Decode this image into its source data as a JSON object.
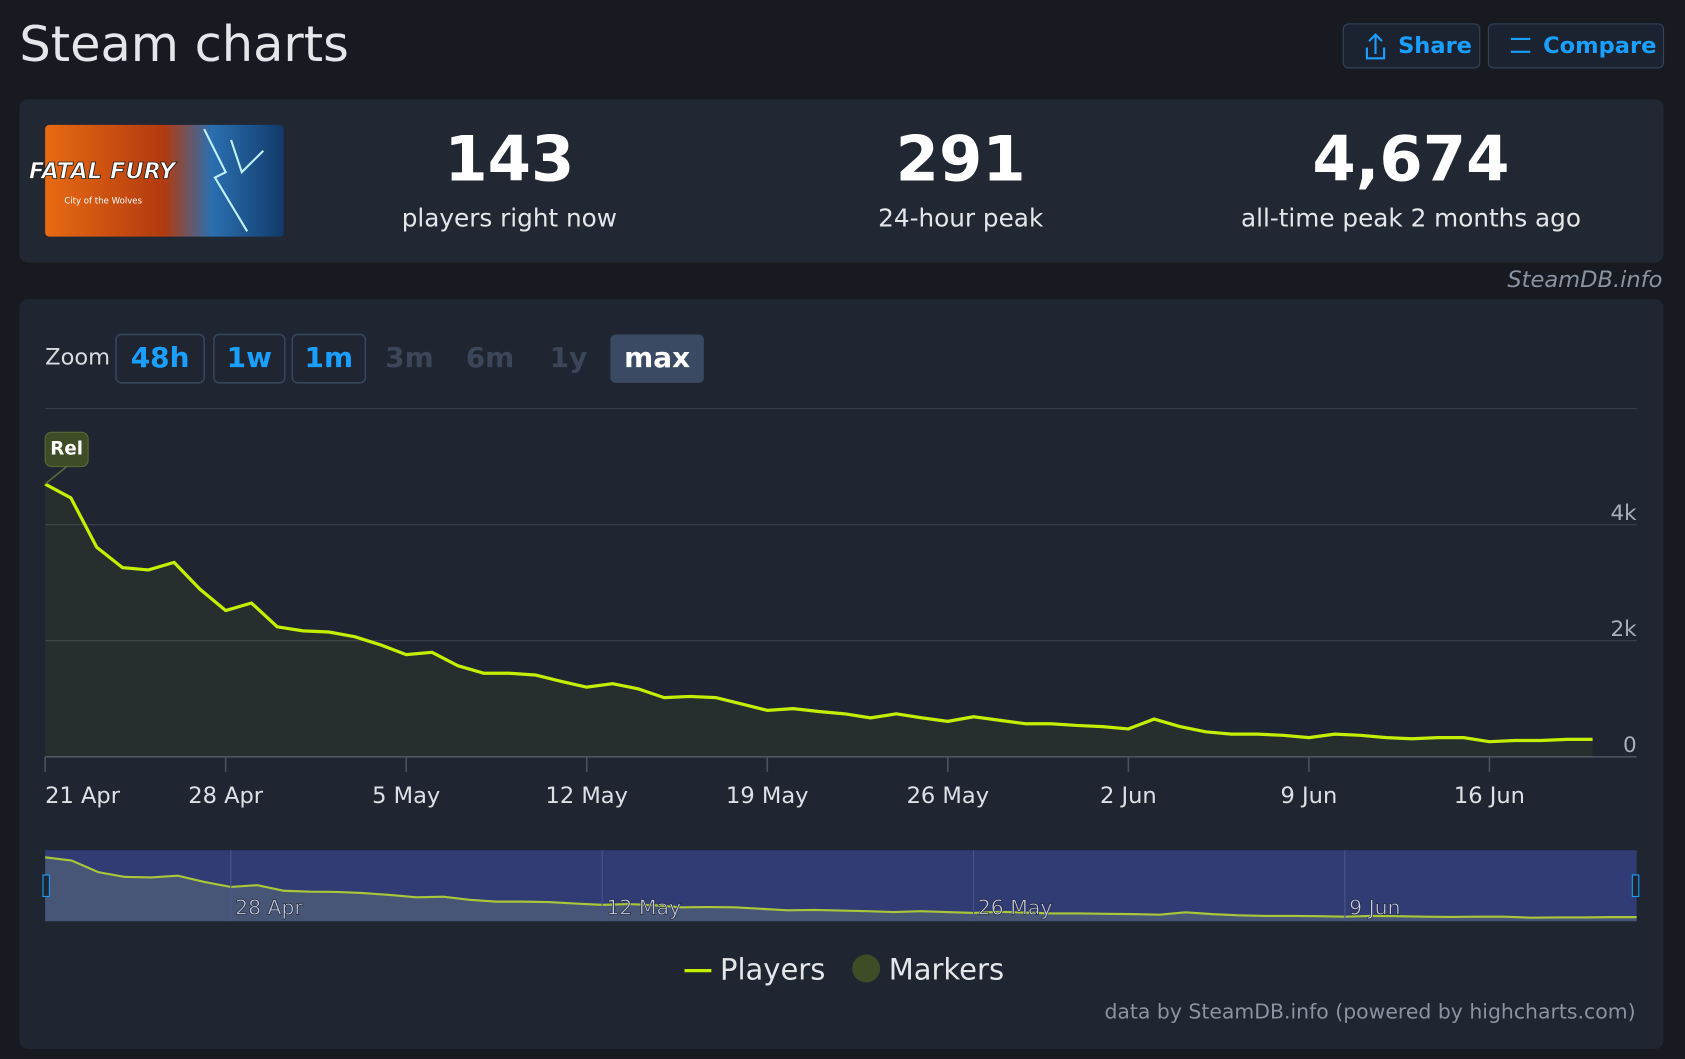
{
  "header": {
    "title": "Steam charts",
    "buttons": [
      "Share",
      "Compare"
    ]
  },
  "game_image": {
    "title": "FATAL FURY",
    "subtitle": "City of the Wolves"
  },
  "stats": [
    {
      "value": "143",
      "label": "players right now"
    },
    {
      "value": "291",
      "label": "24-hour peak"
    },
    {
      "value": "4,674",
      "label": "all-time peak 2 months ago"
    }
  ],
  "watermark": "SteamDB.info",
  "zoom": {
    "label": "Zoom",
    "options": [
      "48h",
      "1w",
      "1m",
      "3m",
      "6m",
      "1y",
      "max"
    ]
  },
  "chart_data": {
    "type": "line",
    "categories": [
      "21 Apr",
      null,
      null,
      null,
      null,
      null,
      null,
      "28 Apr",
      null,
      null,
      null,
      null,
      null,
      null,
      "5 May",
      null,
      null,
      null,
      null,
      null,
      null,
      "12 May",
      null,
      null,
      null,
      null,
      null,
      null,
      "19 May",
      null,
      null,
      null,
      null,
      null,
      null,
      "26 May",
      null,
      null,
      null,
      null,
      null,
      null,
      "2 Jun",
      null,
      null,
      null,
      null,
      null,
      null,
      "9 Jun",
      null,
      null,
      null,
      null,
      null,
      null,
      "16 Jun",
      null,
      null,
      null,
      null
    ],
    "series": [
      {
        "name": "Players",
        "color": "#c4f000",
        "values": [
          4700,
          4460,
          3610,
          3260,
          3220,
          3350,
          2890,
          2520,
          2650,
          2240,
          2170,
          2150,
          2070,
          1930,
          1760,
          1800,
          1570,
          1440,
          1440,
          1410,
          1300,
          1200,
          1260,
          1170,
          1020,
          1040,
          1020,
          910,
          800,
          830,
          780,
          740,
          670,
          740,
          670,
          610,
          690,
          630,
          570,
          570,
          540,
          520,
          480,
          650,
          520,
          430,
          390,
          390,
          370,
          330,
          390,
          370,
          330,
          310,
          330,
          330,
          260,
          280,
          280,
          300,
          300
        ]
      }
    ],
    "markers": {
      "name": "Markers",
      "color": "#3e4d26",
      "labels": [
        "Rel"
      ]
    },
    "ylim": [
      0,
      6000
    ],
    "yticks": [
      0,
      {
        "value": 2000,
        "label": "2k"
      },
      {
        "value": 4000,
        "label": "4k"
      }
    ],
    "grid": true,
    "credits": "data by SteamDB.info (powered by highcharts.com)"
  }
}
